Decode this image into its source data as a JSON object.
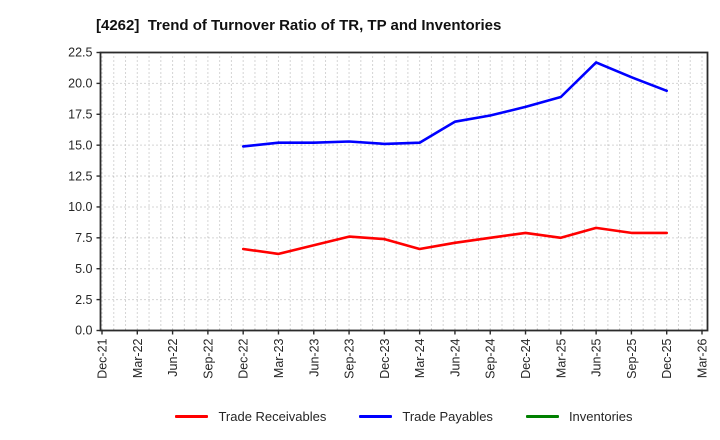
{
  "title": "[4262]  Trend of Turnover Ratio of TR, TP and Inventories",
  "chart_data": {
    "type": "line",
    "title": "[4262]  Trend of Turnover Ratio of TR, TP and Inventories",
    "xlabel": "",
    "ylabel": "",
    "ylim": [
      0,
      22.5
    ],
    "ytick_step": 2.5,
    "grid": true,
    "x_minor_per_tick": 3,
    "legend_position": "bottom",
    "categories": [
      "Dec-21",
      "Mar-22",
      "Jun-22",
      "Sep-22",
      "Dec-22",
      "Mar-23",
      "Jun-23",
      "Sep-23",
      "Dec-23",
      "Mar-24",
      "Jun-24",
      "Sep-24",
      "Dec-24",
      "Mar-25",
      "Jun-25",
      "Sep-25",
      "Dec-25",
      "Mar-26"
    ],
    "series": [
      {
        "name": "Trade Receivables",
        "color": "#ff0000",
        "values": [
          null,
          null,
          null,
          null,
          6.6,
          6.2,
          6.9,
          7.6,
          7.4,
          6.6,
          7.1,
          7.5,
          7.9,
          7.5,
          8.3,
          7.9,
          7.9,
          null
        ]
      },
      {
        "name": "Trade Payables",
        "color": "#0000ff",
        "values": [
          null,
          null,
          null,
          null,
          14.9,
          15.2,
          15.2,
          15.3,
          15.1,
          15.2,
          16.9,
          17.4,
          18.1,
          18.9,
          21.7,
          20.5,
          19.4,
          null
        ]
      },
      {
        "name": "Inventories",
        "color": "#008000",
        "values": [
          null,
          null,
          null,
          null,
          null,
          null,
          null,
          null,
          null,
          null,
          null,
          null,
          null,
          null,
          null,
          null,
          null,
          null
        ]
      }
    ],
    "colors": {
      "grid": "#ababab",
      "spine": "#2b2b2b",
      "tick_label": "#262626",
      "background": "#ffffff"
    }
  }
}
